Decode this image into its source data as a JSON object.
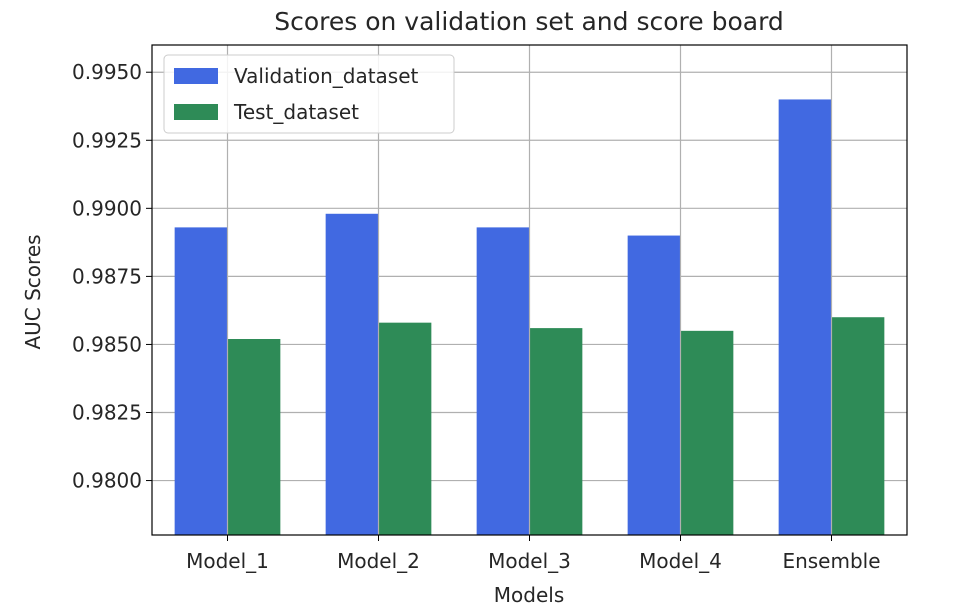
{
  "chart_data": {
    "type": "bar",
    "title": "Scores on validation set and score board",
    "xlabel": "Models",
    "ylabel": "AUC Scores",
    "categories": [
      "Model_1",
      "Model_2",
      "Model_3",
      "Model_4",
      "Ensemble"
    ],
    "series": [
      {
        "name": "Validation_dataset",
        "values": [
          0.9893,
          0.9898,
          0.9893,
          0.989,
          0.994
        ],
        "color": "#4169e1"
      },
      {
        "name": "Test_dataset",
        "values": [
          0.9852,
          0.9858,
          0.9856,
          0.9855,
          0.986
        ],
        "color": "#2e8b57"
      }
    ],
    "ylim": [
      0.978,
      0.996
    ],
    "yticks": [
      0.98,
      0.9825,
      0.985,
      0.9875,
      0.99,
      0.9925,
      0.995
    ],
    "ytick_labels": [
      "0.9800",
      "0.9825",
      "0.9850",
      "0.9875",
      "0.9900",
      "0.9925",
      "0.9950"
    ],
    "grid": true,
    "legend_position": "top-left"
  }
}
